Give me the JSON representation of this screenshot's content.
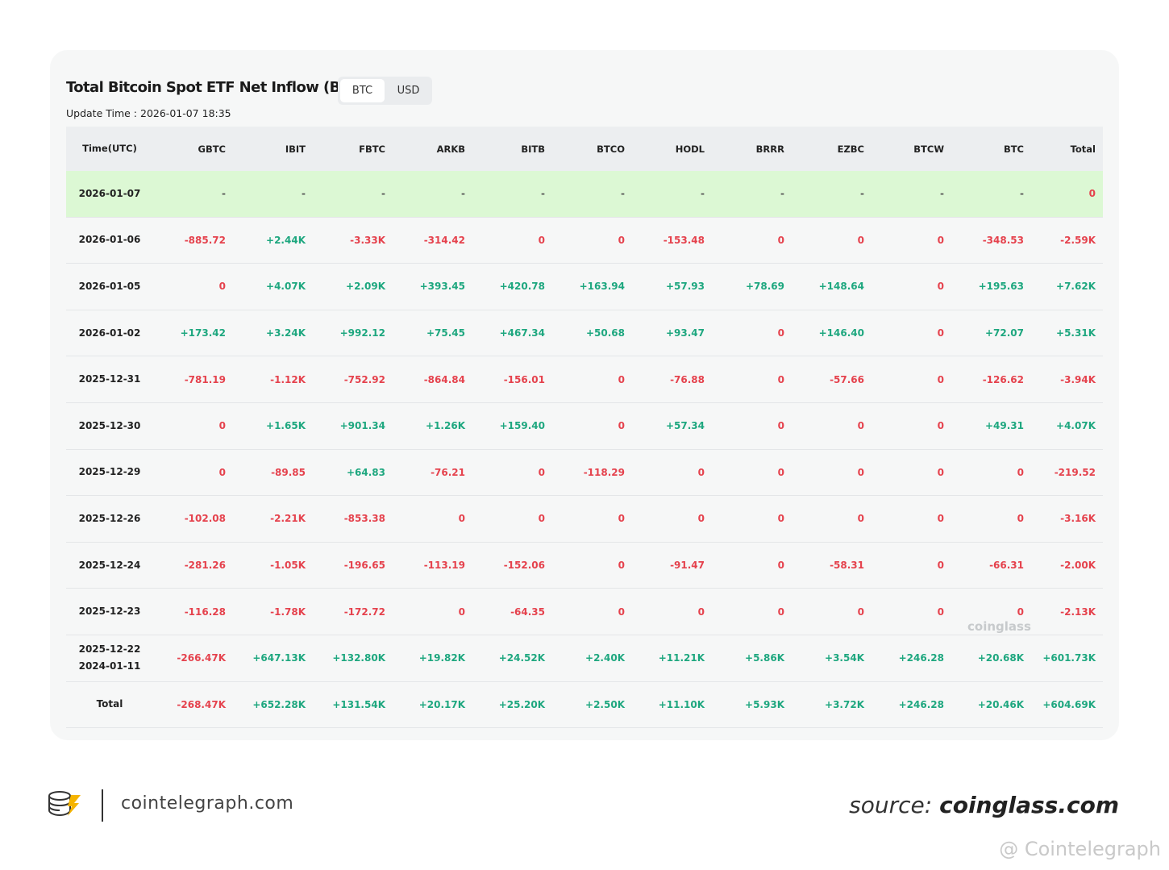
{
  "header": {
    "title": "Total Bitcoin Spot ETF Net Inflow (BTC)",
    "tabs": [
      "BTC",
      "USD"
    ],
    "update_time": "Update Time : 2026-01-07 18:35"
  },
  "table": {
    "columns": [
      "Time(UTC)",
      "GBTC",
      "IBIT",
      "FBTC",
      "ARKB",
      "BITB",
      "BTCO",
      "HODL",
      "BRRR",
      "EZBC",
      "BTCW",
      "BTC",
      "Total"
    ],
    "rows": [
      {
        "time": [
          "2026-01-07"
        ],
        "values": [
          "-",
          "-",
          "-",
          "-",
          "-",
          "-",
          "-",
          "-",
          "-",
          "-",
          "-",
          "0"
        ]
      },
      {
        "time": [
          "2026-01-06"
        ],
        "values": [
          "-885.72",
          "+2.44K",
          "-3.33K",
          "-314.42",
          "0",
          "0",
          "-153.48",
          "0",
          "0",
          "0",
          "-348.53",
          "-2.59K"
        ]
      },
      {
        "time": [
          "2026-01-05"
        ],
        "values": [
          "0",
          "+4.07K",
          "+2.09K",
          "+393.45",
          "+420.78",
          "+163.94",
          "+57.93",
          "+78.69",
          "+148.64",
          "0",
          "+195.63",
          "+7.62K"
        ]
      },
      {
        "time": [
          "2026-01-02"
        ],
        "values": [
          "+173.42",
          "+3.24K",
          "+992.12",
          "+75.45",
          "+467.34",
          "+50.68",
          "+93.47",
          "0",
          "+146.40",
          "0",
          "+72.07",
          "+5.31K"
        ]
      },
      {
        "time": [
          "2025-12-31"
        ],
        "values": [
          "-781.19",
          "-1.12K",
          "-752.92",
          "-864.84",
          "-156.01",
          "0",
          "-76.88",
          "0",
          "-57.66",
          "0",
          "-126.62",
          "-3.94K"
        ]
      },
      {
        "time": [
          "2025-12-30"
        ],
        "values": [
          "0",
          "+1.65K",
          "+901.34",
          "+1.26K",
          "+159.40",
          "0",
          "+57.34",
          "0",
          "0",
          "0",
          "+49.31",
          "+4.07K"
        ]
      },
      {
        "time": [
          "2025-12-29"
        ],
        "values": [
          "0",
          "-89.85",
          "+64.83",
          "-76.21",
          "0",
          "-118.29",
          "0",
          "0",
          "0",
          "0",
          "0",
          "-219.52"
        ]
      },
      {
        "time": [
          "2025-12-26"
        ],
        "values": [
          "-102.08",
          "-2.21K",
          "-853.38",
          "0",
          "0",
          "0",
          "0",
          "0",
          "0",
          "0",
          "0",
          "-3.16K"
        ]
      },
      {
        "time": [
          "2025-12-24"
        ],
        "values": [
          "-281.26",
          "-1.05K",
          "-196.65",
          "-113.19",
          "-152.06",
          "0",
          "-91.47",
          "0",
          "-58.31",
          "0",
          "-66.31",
          "-2.00K"
        ]
      },
      {
        "time": [
          "2025-12-23"
        ],
        "values": [
          "-116.28",
          "-1.78K",
          "-172.72",
          "0",
          "-64.35",
          "0",
          "0",
          "0",
          "0",
          "0",
          "0",
          "-2.13K"
        ]
      },
      {
        "time": [
          "2025-12-22",
          "2024-01-11"
        ],
        "values": [
          "-266.47K",
          "+647.13K",
          "+132.80K",
          "+19.82K",
          "+24.52K",
          "+2.40K",
          "+11.21K",
          "+5.86K",
          "+3.54K",
          "+246.28",
          "+20.68K",
          "+601.73K"
        ]
      },
      {
        "time": [
          "Total"
        ],
        "values": [
          "-268.47K",
          "+652.28K",
          "+131.54K",
          "+20.17K",
          "+25.20K",
          "+2.50K",
          "+11.10K",
          "+5.93K",
          "+3.72K",
          "+246.28",
          "+20.46K",
          "+604.69K"
        ]
      }
    ]
  },
  "watermark": "coinglass",
  "footer": {
    "brand": "cointelegraph.com",
    "source_prefix": "source:",
    "source_site": "coinglass.com",
    "credit": "@ Cointelegraph"
  }
}
